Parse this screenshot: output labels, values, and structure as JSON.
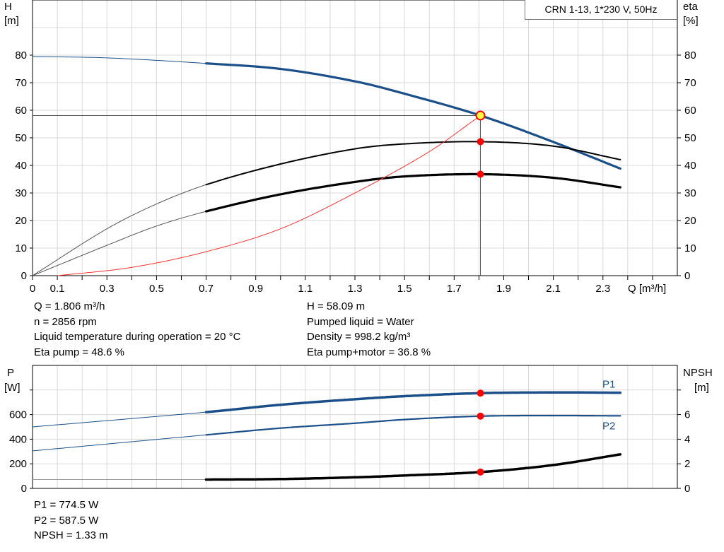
{
  "legend_box": "CRN 1-13, 1*230 V, 50Hz",
  "info_top_left": [
    "Q = 1.806 m³/h",
    "n = 2856 rpm",
    "Liquid temperature during operation = 20 °C",
    "Eta pump = 48.6 %"
  ],
  "info_top_right": [
    "H = 58.09 m",
    "Pumped liquid = Water",
    "Density = 998.2 kg/m³",
    "Eta pump+motor = 36.8 %"
  ],
  "info_bottom": [
    "P1 = 774.5 W",
    "P2 = 587.5 W",
    "NPSH = 1.33 m"
  ],
  "colors": {
    "head": "#1a4f8a",
    "eta": "#000000",
    "system": "#ff3030",
    "marker": "#ff0000",
    "op_marker": "#ffff40",
    "grid": "#d8d8d8"
  },
  "chart_data": [
    {
      "type": "line",
      "xlabel": "Q [m³/h]",
      "ylabel_left": "H\n[m]",
      "ylabel_right": "eta\n[%]",
      "xlim": [
        0,
        2.6
      ],
      "ylim": [
        0,
        100
      ],
      "xticks": [
        "0",
        "0.1",
        "0.3",
        "0.5",
        "0.7",
        "0.9",
        "1.1",
        "1.3",
        "1.5",
        "1.7",
        "1.9",
        "2.1",
        "2.3"
      ],
      "yticks": [
        0,
        10,
        20,
        30,
        40,
        50,
        60,
        70,
        80
      ],
      "grid": true,
      "series": [
        {
          "id": "H",
          "x": [
            0,
            0.3,
            0.7,
            1.0,
            1.3,
            1.5,
            1.806,
            2.1,
            2.374
          ],
          "y": [
            79.5,
            79,
            77,
            75,
            70.5,
            66,
            58.09,
            48.5,
            38.7
          ]
        },
        {
          "id": "eta_pump",
          "x": [
            0,
            0.3,
            0.5,
            0.7,
            1.0,
            1.3,
            1.5,
            1.806,
            2.1,
            2.374
          ],
          "y": [
            0,
            17,
            26,
            33,
            40.5,
            46,
            47.8,
            48.6,
            47,
            42
          ]
        },
        {
          "id": "eta_total",
          "x": [
            0,
            0.3,
            0.5,
            0.7,
            1.0,
            1.3,
            1.5,
            1.806,
            2.1,
            2.374
          ],
          "y": [
            0,
            11,
            18,
            23.3,
            29.5,
            34,
            36,
            36.8,
            35.5,
            32
          ]
        },
        {
          "id": "system",
          "x": [
            0.1,
            0.4,
            0.7,
            1.0,
            1.3,
            1.6,
            1.806
          ],
          "y": [
            0,
            3,
            8.7,
            17,
            30,
            45,
            58.09
          ]
        }
      ],
      "operating_point": {
        "Q": 1.806,
        "H": 58.09,
        "eta_pump": 48.6,
        "eta_total": 36.8
      }
    },
    {
      "type": "line",
      "ylabel_left": "P\n[W]",
      "ylabel_right": "NPSH\n[m]",
      "xlim": [
        0,
        2.6
      ],
      "ylim": [
        0,
        1000
      ],
      "ylim_right": [
        0,
        10
      ],
      "yticks": [
        0,
        200,
        400,
        600
      ],
      "yticks_right": [
        0,
        2,
        4,
        6
      ],
      "series": [
        {
          "id": "P1",
          "name": "P1",
          "x": [
            0,
            0.7,
            1.0,
            1.3,
            1.5,
            1.806,
            2.1,
            2.374
          ],
          "y": [
            500,
            620,
            680,
            725,
            750,
            774.5,
            780,
            778
          ]
        },
        {
          "id": "P2",
          "name": "P2",
          "x": [
            0,
            0.7,
            1.0,
            1.3,
            1.5,
            1.806,
            2.1,
            2.374
          ],
          "y": [
            305,
            435,
            490,
            530,
            560,
            587.5,
            592,
            590
          ]
        },
        {
          "id": "NPSH",
          "x": [
            0,
            0.7,
            1.0,
            1.3,
            1.5,
            1.806,
            2.1,
            2.374
          ],
          "y": [
            0.72,
            0.72,
            0.76,
            0.9,
            1.05,
            1.33,
            1.9,
            2.78
          ]
        }
      ],
      "operating_point": {
        "P1": 774.5,
        "P2": 587.5,
        "NPSH": 1.33
      }
    }
  ]
}
